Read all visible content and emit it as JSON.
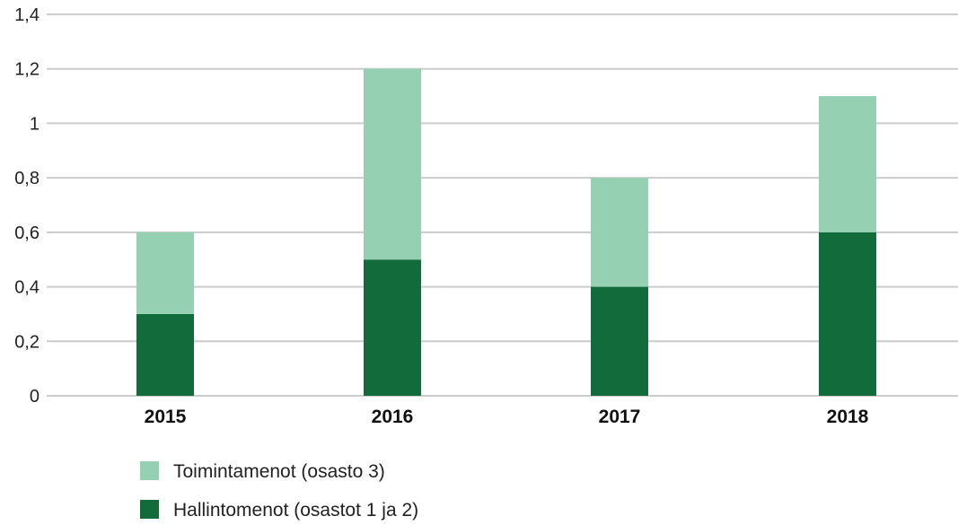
{
  "chart_data": {
    "type": "bar",
    "stacked": true,
    "categories": [
      "2015",
      "2016",
      "2017",
      "2018"
    ],
    "series": [
      {
        "name": "Hallintomenot (osastot 1 ja 2)",
        "values": [
          0.3,
          0.5,
          0.4,
          0.6
        ],
        "color": "#116b3b"
      },
      {
        "name": "Toimintamenot (osasto 3)",
        "values": [
          0.3,
          0.7,
          0.4,
          0.5
        ],
        "color": "#96d0b3"
      }
    ],
    "ylim": [
      0,
      1.4
    ],
    "yticks": [
      0,
      0.2,
      0.4,
      0.6,
      0.8,
      1,
      1.2,
      1.4
    ],
    "ytick_labels": [
      "0",
      "0,2",
      "0,4",
      "0,6",
      "0,8",
      "1",
      "1,2",
      "1,4"
    ],
    "grid": true,
    "grid_color": "#cccccc",
    "legend_position": "bottom-left",
    "legend_order": [
      1,
      0
    ]
  }
}
